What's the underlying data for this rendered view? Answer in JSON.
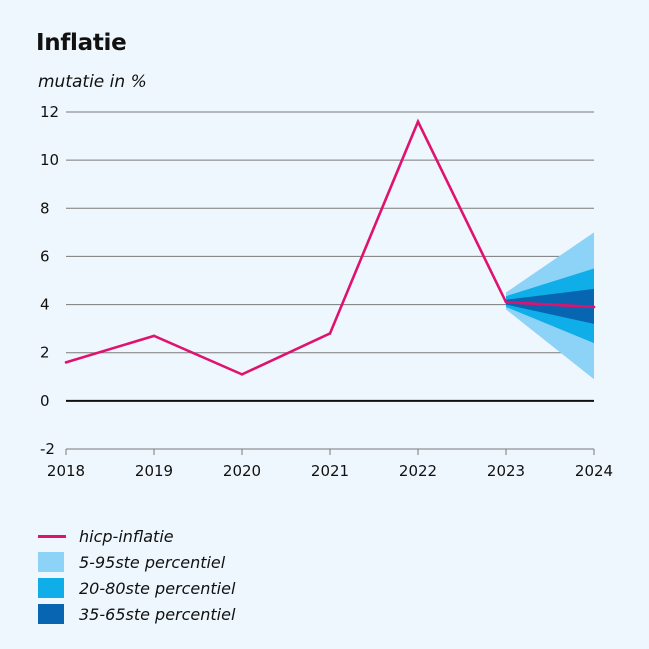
{
  "title": "Inflatie",
  "subtitle": "mutatie in %",
  "colors": {
    "line": "#e0126f",
    "band_5_95": "#8dd3f7",
    "band_20_80": "#10aee9",
    "band_35_65": "#0865b1",
    "grid": "#7a7a7a",
    "zero": "#111111"
  },
  "legend": [
    {
      "label": "hicp-inflatie",
      "kind": "line",
      "color": "#e0126f"
    },
    {
      "label": "5-95ste percentiel",
      "kind": "band",
      "color": "#8dd3f7"
    },
    {
      "label": "20-80ste percentiel",
      "kind": "band",
      "color": "#10aee9"
    },
    {
      "label": "35-65ste percentiel",
      "kind": "band",
      "color": "#0865b1"
    }
  ],
  "chart_data": {
    "type": "line",
    "title": "Inflatie",
    "ylabel": "mutatie in %",
    "xlabel": "",
    "x": [
      "2018",
      "2019",
      "2020",
      "2021",
      "2022",
      "2023",
      "2024"
    ],
    "ylim": [
      -2,
      12
    ],
    "yticks": [
      -2,
      0,
      2,
      4,
      6,
      8,
      10,
      12
    ],
    "series": [
      {
        "name": "hicp-inflatie",
        "values": [
          1.6,
          2.7,
          1.1,
          2.8,
          11.6,
          4.1,
          3.9
        ]
      }
    ],
    "fan": {
      "start": "2023",
      "end": "2024",
      "bands": [
        {
          "name": "5-95ste percentiel",
          "start": [
            3.8,
            4.5
          ],
          "end": [
            0.9,
            7.0
          ]
        },
        {
          "name": "20-80ste percentiel",
          "start": [
            3.9,
            4.35
          ],
          "end": [
            2.4,
            5.5
          ]
        },
        {
          "name": "35-65ste percentiel",
          "start": [
            4.0,
            4.2
          ],
          "end": [
            3.2,
            4.65
          ]
        }
      ]
    }
  }
}
